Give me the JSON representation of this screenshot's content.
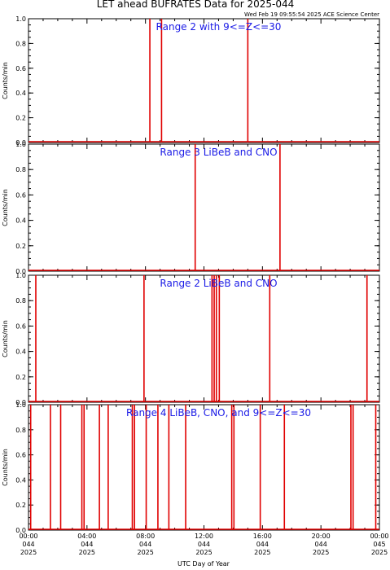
{
  "title": "LET ahead BUFRATES Data for 2025-044",
  "timestamp": "Wed Feb 19 09:55:54 2025 ACE Science Center",
  "xlabel": "UTC Day of Year",
  "chart_data": [
    {
      "type": "line",
      "panel_label": "Range 2 with 9<=Z<=30",
      "ylabel": "Counts/min",
      "ylim": [
        0,
        1.0
      ],
      "yticks": [
        "0.0",
        "0.2",
        "0.4",
        "0.6",
        "0.8",
        "1.0"
      ],
      "xlim_hours": [
        0,
        24
      ],
      "spike_hours": [
        8.3,
        9.1,
        15.0
      ]
    },
    {
      "type": "line",
      "panel_label": "Range 3 LiBeB and CNO",
      "ylabel": "Counts/min",
      "ylim": [
        0,
        1.0
      ],
      "yticks": [
        "0.0",
        "0.2",
        "0.4",
        "0.6",
        "0.8",
        "1.0"
      ],
      "xlim_hours": [
        0,
        24
      ],
      "spike_hours": [
        11.4,
        17.2
      ]
    },
    {
      "type": "line",
      "panel_label": "Range 2 LiBeB and CNO",
      "ylabel": "Counts/min",
      "ylim": [
        0,
        1.0
      ],
      "yticks": [
        "0.0",
        "0.2",
        "0.4",
        "0.6",
        "0.8",
        "1.0"
      ],
      "xlim_hours": [
        0,
        24
      ],
      "spike_hours": [
        0.5,
        7.9,
        12.55,
        12.7,
        12.85,
        13.05,
        16.5,
        23.15
      ]
    },
    {
      "type": "line",
      "panel_label": "Range 4 LiBeB, CNO, and 9<=Z<=30",
      "ylabel": "Counts/min",
      "ylim": [
        0,
        1.0
      ],
      "yticks": [
        "0.0",
        "0.2",
        "0.4",
        "0.6",
        "0.8",
        "1.0"
      ],
      "xlim_hours": [
        0,
        24
      ],
      "spike_hours": [
        0.15,
        1.5,
        2.2,
        3.65,
        3.8,
        4.85,
        5.45,
        7.1,
        7.25,
        8.05,
        8.85,
        9.6,
        10.75,
        13.9,
        14.05,
        15.85,
        17.5,
        22.05,
        22.2,
        23.75
      ]
    }
  ],
  "xticks": [
    {
      "time": "00:00",
      "doy": "044",
      "year": "2025"
    },
    {
      "time": "04:00",
      "doy": "044",
      "year": "2025"
    },
    {
      "time": "08:00",
      "doy": "044",
      "year": "2025"
    },
    {
      "time": "12:00",
      "doy": "044",
      "year": "2025"
    },
    {
      "time": "16:00",
      "doy": "044",
      "year": "2025"
    },
    {
      "time": "20:00",
      "doy": "044",
      "year": "2025"
    },
    {
      "time": "00:00",
      "doy": "045",
      "year": "2025"
    }
  ]
}
